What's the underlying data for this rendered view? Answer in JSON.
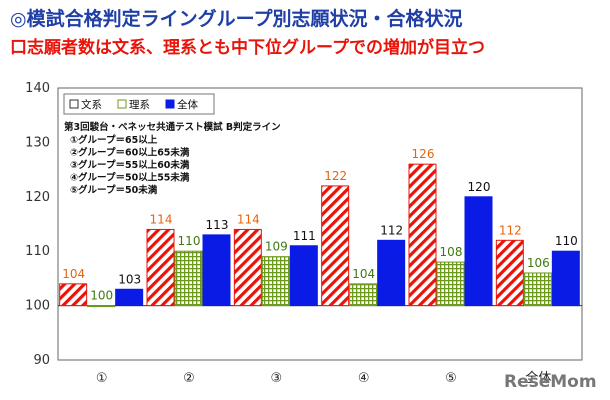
{
  "header": {
    "title": "◎模試合格判定ライングループ別志願状況・合格状況",
    "subtitle": "口志願者数は文系、理系とも中下位グループでの増加が目立つ"
  },
  "chart_data": {
    "type": "bar",
    "categories": [
      "①",
      "②",
      "③",
      "④",
      "⑤",
      "全体"
    ],
    "series": [
      {
        "name": "文系",
        "values": [
          104,
          114,
          114,
          122,
          126,
          112
        ]
      },
      {
        "name": "理系",
        "values": [
          100,
          110,
          109,
          104,
          108,
          106
        ]
      },
      {
        "name": "全体",
        "values": [
          103,
          113,
          111,
          112,
          120,
          110
        ]
      }
    ],
    "ylim": [
      90,
      140
    ],
    "yticks": [
      90,
      100,
      110,
      120,
      130,
      140
    ],
    "baseline": 100,
    "legend": "top-left",
    "grid": false,
    "colors": {
      "文系": "#e8140a",
      "理系": "#6b9a1d",
      "全体": "#0a1be6"
    },
    "label_colors": {
      "文系": "#e8640a",
      "理系": "#3f7a10",
      "全体": "#111111"
    },
    "annotation": {
      "title": "第3回駿台・ベネッセ共通テスト模試 B判定ライン",
      "lines": [
        "①グループ＝65以上",
        "②グループ＝60以上65未満",
        "③グループ＝55以上60未満",
        "④グループ＝50以上55未満",
        "⑤グループ＝50未満"
      ]
    }
  },
  "watermark": "ReseMom"
}
